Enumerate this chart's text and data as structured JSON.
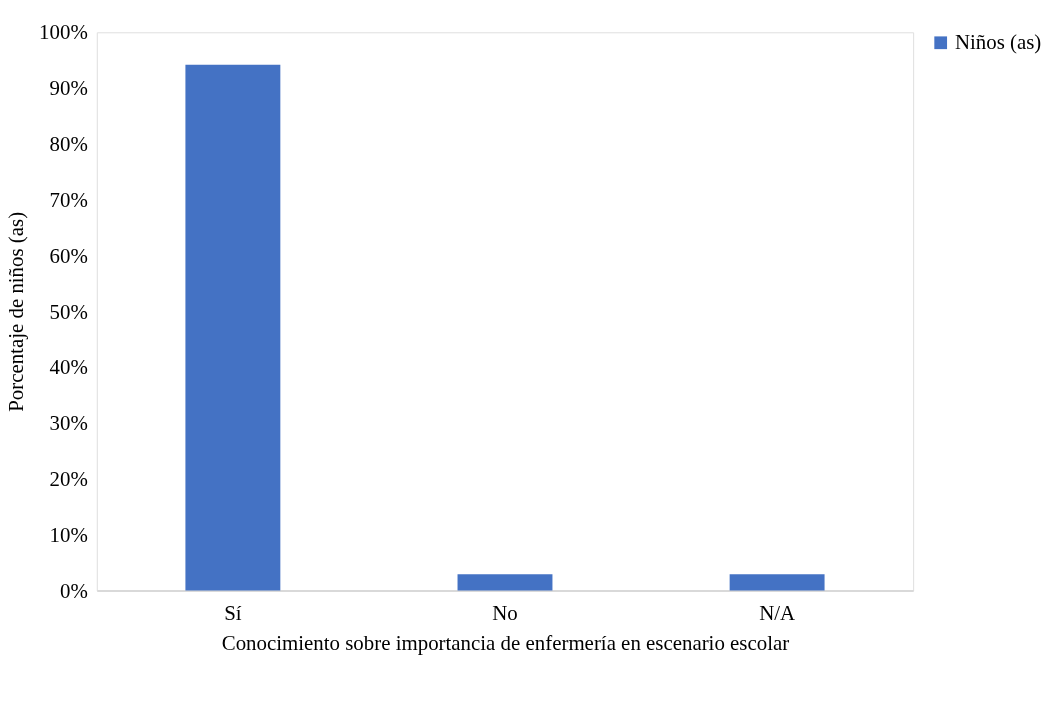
{
  "chart_data": {
    "type": "bar",
    "xlabel": "Conocimiento sobre importancia de enfermería en escenario escolar",
    "ylabel": "Porcentaje de niños (as)",
    "categories": [
      "Sí",
      "No",
      "N/A"
    ],
    "series": [
      {
        "name": "Niños (as)",
        "color": "#4472c4",
        "values": [
          94.2,
          2.9,
          2.9
        ]
      }
    ],
    "ylim": [
      0,
      100
    ],
    "yticks": [
      {
        "value": 0,
        "label": "0%"
      },
      {
        "value": 10,
        "label": "10%"
      },
      {
        "value": 20,
        "label": "20%"
      },
      {
        "value": 30,
        "label": "30%"
      },
      {
        "value": 40,
        "label": "40%"
      },
      {
        "value": 50,
        "label": "50%"
      },
      {
        "value": 60,
        "label": "60%"
      },
      {
        "value": 70,
        "label": "70%"
      },
      {
        "value": 80,
        "label": "80%"
      },
      {
        "value": 90,
        "label": "90%"
      },
      {
        "value": 100,
        "label": "100%"
      }
    ],
    "grid": false,
    "legend": "right"
  }
}
